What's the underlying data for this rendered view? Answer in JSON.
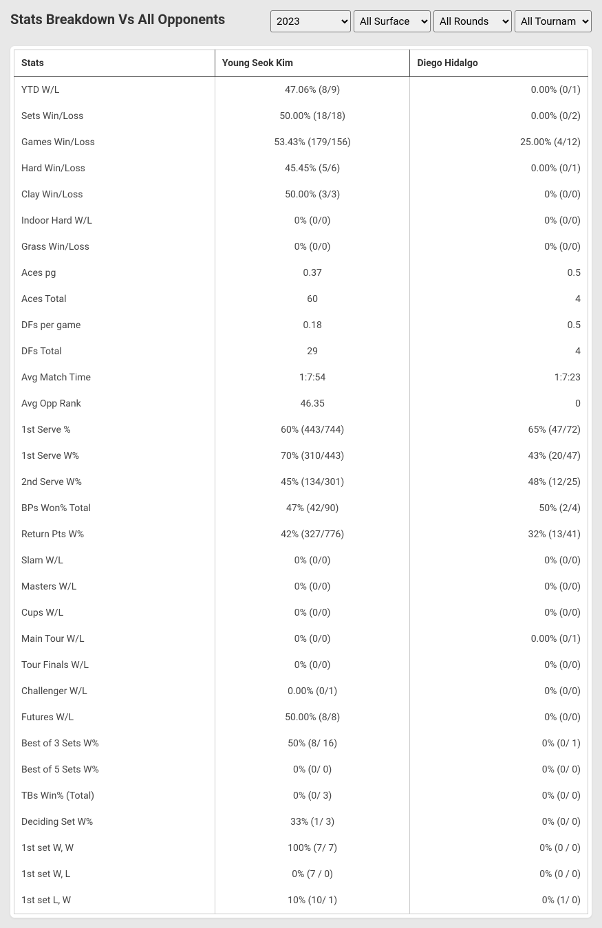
{
  "title": "Stats Breakdown Vs All Opponents",
  "filters": {
    "year": {
      "selected": "2023",
      "options": [
        "2023"
      ]
    },
    "surface": {
      "selected": "All Surface",
      "options": [
        "All Surface"
      ]
    },
    "round": {
      "selected": "All Rounds",
      "options": [
        "All Rounds"
      ]
    },
    "tournament": {
      "selected": "All Tournam",
      "options": [
        "All Tournam"
      ]
    }
  },
  "columns": [
    "Stats",
    "Young Seok Kim",
    "Diego Hidalgo"
  ],
  "rows": [
    {
      "stat": "YTD W/L",
      "p1": "47.06% (8/9)",
      "p2": "0.00% (0/1)"
    },
    {
      "stat": "Sets Win/Loss",
      "p1": "50.00% (18/18)",
      "p2": "0.00% (0/2)"
    },
    {
      "stat": "Games Win/Loss",
      "p1": "53.43% (179/156)",
      "p2": "25.00% (4/12)"
    },
    {
      "stat": "Hard Win/Loss",
      "p1": "45.45% (5/6)",
      "p2": "0.00% (0/1)"
    },
    {
      "stat": "Clay Win/Loss",
      "p1": "50.00% (3/3)",
      "p2": "0% (0/0)"
    },
    {
      "stat": "Indoor Hard W/L",
      "p1": "0% (0/0)",
      "p2": "0% (0/0)"
    },
    {
      "stat": "Grass Win/Loss",
      "p1": "0% (0/0)",
      "p2": "0% (0/0)"
    },
    {
      "stat": "Aces pg",
      "p1": "0.37",
      "p2": "0.5"
    },
    {
      "stat": "Aces Total",
      "p1": "60",
      "p2": "4"
    },
    {
      "stat": "DFs per game",
      "p1": "0.18",
      "p2": "0.5"
    },
    {
      "stat": "DFs Total",
      "p1": "29",
      "p2": "4"
    },
    {
      "stat": "Avg Match Time",
      "p1": "1:7:54",
      "p2": "1:7:23"
    },
    {
      "stat": "Avg Opp Rank",
      "p1": "46.35",
      "p2": "0"
    },
    {
      "stat": "1st Serve %",
      "p1": "60% (443/744)",
      "p2": "65% (47/72)"
    },
    {
      "stat": "1st Serve W%",
      "p1": "70% (310/443)",
      "p2": "43% (20/47)"
    },
    {
      "stat": "2nd Serve W%",
      "p1": "45% (134/301)",
      "p2": "48% (12/25)"
    },
    {
      "stat": "BPs Won% Total",
      "p1": "47% (42/90)",
      "p2": "50% (2/4)"
    },
    {
      "stat": "Return Pts W%",
      "p1": "42% (327/776)",
      "p2": "32% (13/41)"
    },
    {
      "stat": "Slam W/L",
      "p1": "0% (0/0)",
      "p2": "0% (0/0)"
    },
    {
      "stat": "Masters W/L",
      "p1": "0% (0/0)",
      "p2": "0% (0/0)"
    },
    {
      "stat": "Cups W/L",
      "p1": "0% (0/0)",
      "p2": "0% (0/0)"
    },
    {
      "stat": "Main Tour W/L",
      "p1": "0% (0/0)",
      "p2": "0.00% (0/1)"
    },
    {
      "stat": "Tour Finals W/L",
      "p1": "0% (0/0)",
      "p2": "0% (0/0)"
    },
    {
      "stat": "Challenger W/L",
      "p1": "0.00% (0/1)",
      "p2": "0% (0/0)"
    },
    {
      "stat": "Futures W/L",
      "p1": "50.00% (8/8)",
      "p2": "0% (0/0)"
    },
    {
      "stat": "Best of 3 Sets W%",
      "p1": "50% (8/ 16)",
      "p2": "0% (0/ 1)"
    },
    {
      "stat": "Best of 5 Sets W%",
      "p1": "0% (0/ 0)",
      "p2": "0% (0/ 0)"
    },
    {
      "stat": "TBs Win% (Total)",
      "p1": "0% (0/ 3)",
      "p2": "0% (0/ 0)"
    },
    {
      "stat": "Deciding Set W%",
      "p1": "33% (1/ 3)",
      "p2": "0% (0/ 0)"
    },
    {
      "stat": "1st set W, W",
      "p1": "100% (7/ 7)",
      "p2": "0% (0 / 0)"
    },
    {
      "stat": "1st set W, L",
      "p1": "0% (7 / 0)",
      "p2": "0% (0 / 0)"
    },
    {
      "stat": "1st set L, W",
      "p1": "10% (10/ 1)",
      "p2": "0% (1/ 0)"
    }
  ],
  "style": {
    "background": "#e8e8e8",
    "table_bg": "#ffffff",
    "header_border": "#555555",
    "cell_border": "#cccccc",
    "text_color": "#333333",
    "title_fontsize": 20,
    "cell_fontsize": 14
  }
}
